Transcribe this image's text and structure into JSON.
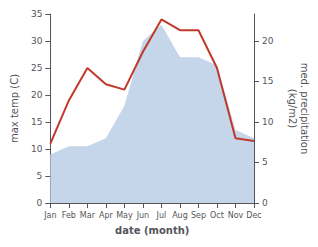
{
  "chart_data": {
    "type": "line",
    "xlabel": "date (month)",
    "ylabel": "max temp (C)",
    "y2label": "med. precipitation\n(kg/m2)",
    "categories": [
      "Jan",
      "Feb",
      "Mar",
      "Apr",
      "May",
      "Jun",
      "Jul",
      "Aug",
      "Sep",
      "Oct",
      "Nov",
      "Dec"
    ],
    "series": [
      {
        "type": "area",
        "color": "#c5d5ea",
        "axis": "y2",
        "values": [
          6,
          7,
          7,
          8,
          12,
          20,
          22,
          18,
          18,
          17,
          9,
          8
        ]
      },
      {
        "type": "line",
        "color": "#c0392b",
        "values": [
          11,
          19,
          25,
          22,
          21,
          28,
          34,
          32,
          32,
          25,
          12,
          11.5
        ]
      }
    ],
    "ylim": [
      0,
      35
    ],
    "yticks": [
      0,
      5,
      10,
      15,
      20,
      25,
      30,
      35
    ],
    "y2lim": [
      0,
      23.33
    ],
    "y2ticks": [
      0,
      5,
      10,
      15,
      20
    ],
    "grid": false
  }
}
